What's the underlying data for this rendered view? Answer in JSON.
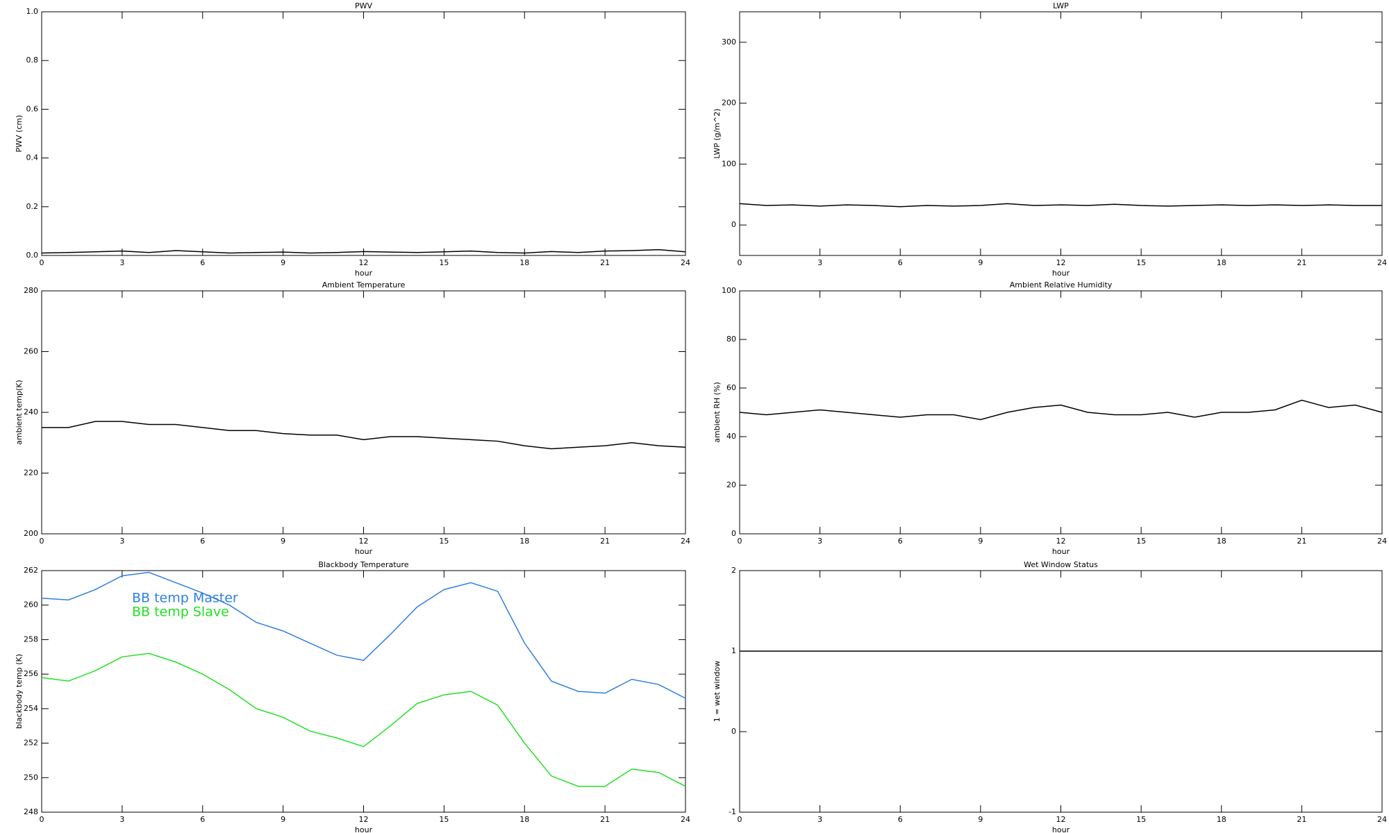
{
  "chart_data": [
    {
      "type": "line",
      "title": "PWV",
      "ylabel": "PWV (cm)",
      "xlabel": "hour",
      "x": [
        0,
        1,
        2,
        3,
        4,
        5,
        6,
        7,
        8,
        9,
        10,
        11,
        12,
        13,
        14,
        15,
        16,
        17,
        18,
        19,
        20,
        21,
        22,
        23,
        24
      ],
      "values": [
        0.01,
        0.012,
        0.015,
        0.018,
        0.012,
        0.02,
        0.015,
        0.01,
        0.012,
        0.014,
        0.01,
        0.012,
        0.016,
        0.014,
        0.012,
        0.015,
        0.018,
        0.012,
        0.01,
        0.016,
        0.012,
        0.018,
        0.02,
        0.024,
        0.015
      ],
      "color": "#000000",
      "xlim": [
        0,
        24
      ],
      "xticks": [
        0,
        3,
        6,
        9,
        12,
        15,
        18,
        21,
        24
      ],
      "ylim": [
        0,
        1
      ],
      "yticks": [
        {
          "value": 0,
          "label": "0.0"
        },
        0.2,
        0.4,
        0.6,
        0.8,
        {
          "value": 1,
          "label": "1.0"
        }
      ],
      "grid": false
    },
    {
      "type": "line",
      "title": "LWP",
      "ylabel": "LWP (g/m^2)",
      "xlabel": "hour",
      "x": [
        0,
        1,
        2,
        3,
        4,
        5,
        6,
        7,
        8,
        9,
        10,
        11,
        12,
        13,
        14,
        15,
        16,
        17,
        18,
        19,
        20,
        21,
        22,
        23,
        24
      ],
      "values": [
        35,
        32,
        33,
        31,
        33,
        32,
        30,
        32,
        31,
        32,
        35,
        32,
        33,
        32,
        34,
        32,
        31,
        32,
        33,
        32,
        33,
        32,
        33,
        32,
        32
      ],
      "color": "#000000",
      "xlim": [
        0,
        24
      ],
      "xticks": [
        0,
        3,
        6,
        9,
        12,
        15,
        18,
        21,
        24
      ],
      "ylim": [
        -50,
        350
      ],
      "yticks": [
        0,
        100,
        200,
        300
      ],
      "grid": false
    },
    {
      "type": "line",
      "title": "Ambient Temperature",
      "ylabel": "ambient temp(K)",
      "xlabel": "hour",
      "x": [
        0,
        1,
        2,
        3,
        4,
        5,
        6,
        7,
        8,
        9,
        10,
        11,
        12,
        13,
        14,
        15,
        16,
        17,
        18,
        19,
        20,
        21,
        22,
        23,
        24
      ],
      "values": [
        235,
        235,
        237,
        237,
        236,
        236,
        235,
        234,
        234,
        233,
        232.5,
        232.5,
        231,
        232,
        232,
        231.5,
        231,
        230.5,
        229,
        228,
        228.5,
        229,
        230,
        229,
        228.5
      ],
      "color": "#000000",
      "xlim": [
        0,
        24
      ],
      "xticks": [
        0,
        3,
        6,
        9,
        12,
        15,
        18,
        21,
        24
      ],
      "ylim": [
        200,
        280
      ],
      "yticks": [
        200,
        220,
        240,
        260,
        280
      ],
      "grid": false
    },
    {
      "type": "line",
      "title": "Ambient Relative Humidity",
      "ylabel": "ambient RH (%)",
      "xlabel": "hour",
      "x": [
        0,
        1,
        2,
        3,
        4,
        5,
        6,
        7,
        8,
        9,
        10,
        11,
        12,
        13,
        14,
        15,
        16,
        17,
        18,
        19,
        20,
        21,
        22,
        23,
        24
      ],
      "values": [
        50,
        49,
        50,
        51,
        50,
        49,
        48,
        49,
        49,
        47,
        50,
        52,
        53,
        50,
        49,
        49,
        50,
        48,
        50,
        50,
        51,
        55,
        52,
        53,
        50
      ],
      "color": "#000000",
      "xlim": [
        0,
        24
      ],
      "xticks": [
        0,
        3,
        6,
        9,
        12,
        15,
        18,
        21,
        24
      ],
      "ylim": [
        0,
        100
      ],
      "yticks": [
        0,
        20,
        40,
        60,
        80,
        100
      ],
      "grid": false
    },
    {
      "type": "line",
      "title": "Blackbody Temperature",
      "ylabel": "blackbody temp (K)",
      "xlabel": "hour",
      "x": [
        0,
        1,
        2,
        3,
        4,
        5,
        6,
        7,
        8,
        9,
        10,
        11,
        12,
        13,
        14,
        15,
        16,
        17,
        18,
        19,
        20,
        21,
        22,
        23,
        24
      ],
      "series": [
        {
          "name": "BB temp Master",
          "color": "#2f7fe0",
          "values": [
            260.4,
            260.3,
            260.9,
            261.7,
            261.9,
            261.3,
            260.7,
            260,
            259,
            258.5,
            257.8,
            257.1,
            256.8,
            258.3,
            259.9,
            260.9,
            261.3,
            260.8,
            257.8,
            255.6,
            255,
            254.9,
            255.7,
            255.4,
            254.6
          ]
        },
        {
          "name": "BB temp Slave",
          "color": "#22e022",
          "values": [
            255.8,
            255.6,
            256.2,
            257,
            257.2,
            256.7,
            256,
            255.1,
            254,
            253.5,
            252.7,
            252.3,
            251.8,
            253,
            254.3,
            254.8,
            255,
            254.2,
            252,
            250.1,
            249.5,
            249.5,
            250.5,
            250.3,
            249.5
          ]
        }
      ],
      "legend": "upper left",
      "xlim": [
        0,
        24
      ],
      "xticks": [
        0,
        3,
        6,
        9,
        12,
        15,
        18,
        21,
        24
      ],
      "ylim": [
        248,
        262
      ],
      "yticks": [
        248,
        250,
        252,
        254,
        256,
        258,
        260,
        262
      ],
      "grid": false
    },
    {
      "type": "line",
      "title": "Wet Window Status",
      "ylabel": "1 = wet window",
      "xlabel": "hour",
      "x": [
        0,
        24
      ],
      "values": [
        1,
        1
      ],
      "color": "#000000",
      "xlim": [
        0,
        24
      ],
      "xticks": [
        0,
        3,
        6,
        9,
        12,
        15,
        18,
        21,
        24
      ],
      "ylim": [
        -1,
        2
      ],
      "yticks": [
        -1,
        0,
        1,
        2
      ],
      "grid": false
    }
  ]
}
